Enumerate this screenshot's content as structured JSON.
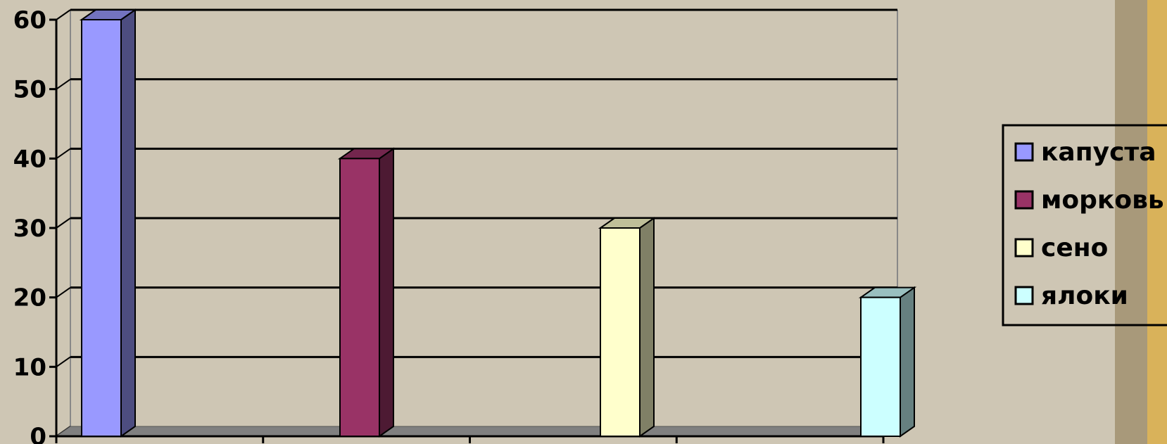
{
  "chart_data": {
    "type": "bar",
    "style": "3d-clustered-column",
    "series": [
      {
        "name": "капуста",
        "value": 60,
        "color": "#9999ff"
      },
      {
        "name": "морковь",
        "value": 40,
        "color": "#993366"
      },
      {
        "name": "сено",
        "value": 30,
        "color": "#ffffcc"
      },
      {
        "name": "ялоки",
        "value": 20,
        "color": "#ccffff"
      }
    ],
    "ylim": [
      0,
      60
    ],
    "yticks": [
      0,
      10,
      20,
      30,
      40,
      50,
      60
    ],
    "grid": true,
    "legend_position": "right"
  },
  "colors": {
    "background": "#cec6b4",
    "floor": "#808080",
    "gridline": "#000000"
  }
}
